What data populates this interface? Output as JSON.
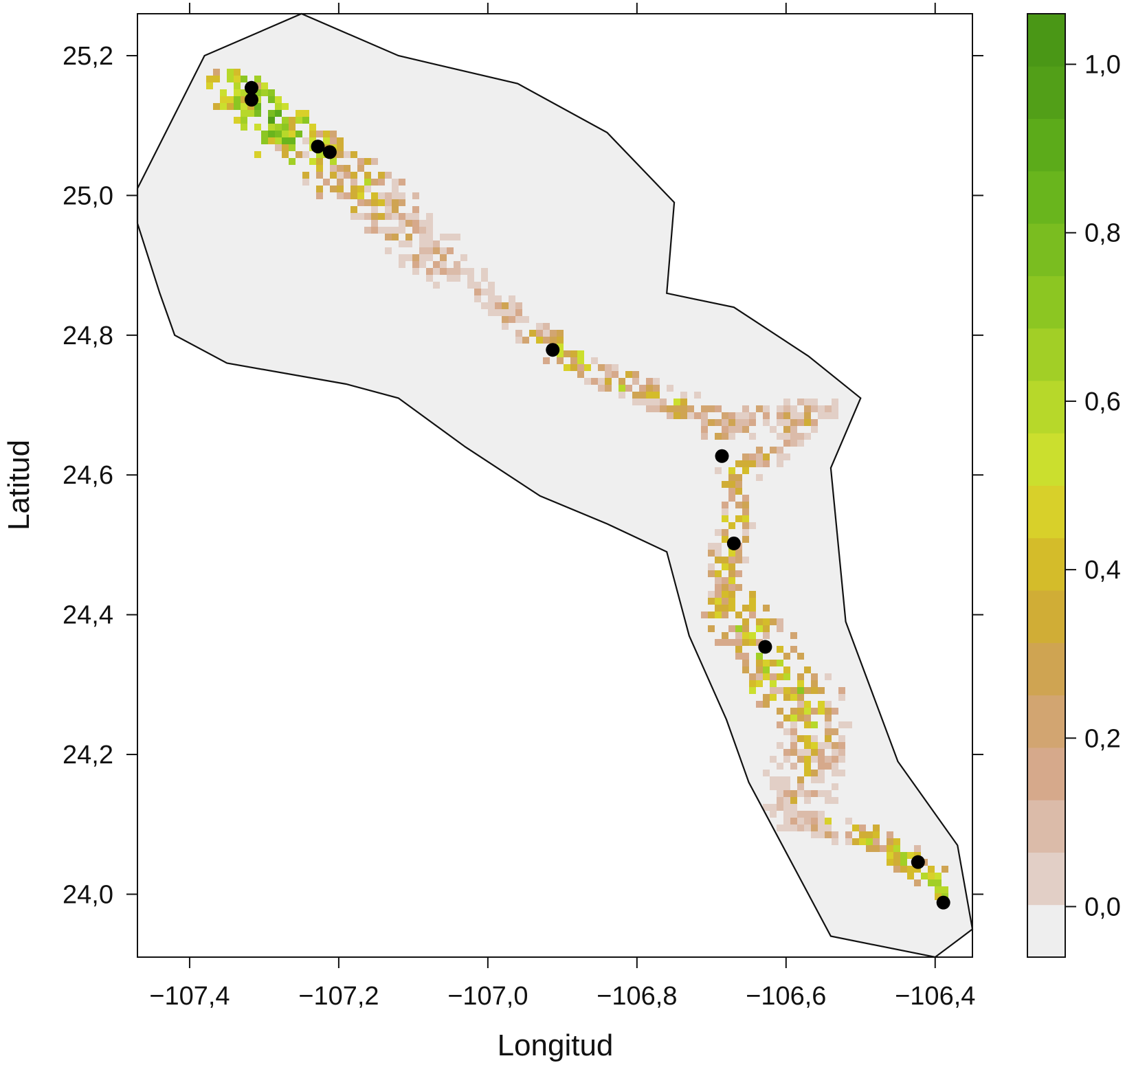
{
  "chart_data": {
    "type": "heatmap",
    "xlabel": "Longitud",
    "ylabel": "Latitud",
    "xlim": [
      -107.47,
      -106.35
    ],
    "ylim": [
      23.91,
      25.26
    ],
    "x_ticks": [
      -107.4,
      -107.2,
      -107.0,
      -106.8,
      -106.6,
      -106.4
    ],
    "x_tick_labels": [
      "−107,4",
      "−107,2",
      "−107,0",
      "−106,8",
      "−106,6",
      "−106,4"
    ],
    "y_ticks": [
      24.0,
      24.2,
      24.4,
      24.6,
      24.8,
      25.0,
      25.2
    ],
    "y_tick_labels": [
      "24,0",
      "24,2",
      "24,4",
      "24,6",
      "24,8",
      "25,0",
      "25,2"
    ],
    "colorbar": {
      "range": [
        -0.06,
        1.06
      ],
      "ticks": [
        0.0,
        0.2,
        0.4,
        0.6,
        0.8,
        1.0
      ],
      "tick_labels": [
        "0,0",
        "0,2",
        "0,4",
        "0,6",
        "0,8",
        "1,0"
      ],
      "colors": [
        "#eeeeee",
        "#e2cfc6",
        "#dbbba9",
        "#d6a98b",
        "#d2a571",
        "#cfa452",
        "#d0ad36",
        "#d4bc2a",
        "#d8d02a",
        "#cbdf2e",
        "#b7d82a",
        "#a2cf26",
        "#8cc622",
        "#7abd20",
        "#69b51d",
        "#5cab1a",
        "#529f18",
        "#4a9716"
      ]
    },
    "study_area_polygon": [
      [
        -107.38,
        25.2
      ],
      [
        -107.25,
        25.26
      ],
      [
        -107.12,
        25.2
      ],
      [
        -106.96,
        25.16
      ],
      [
        -106.84,
        25.09
      ],
      [
        -106.75,
        24.99
      ],
      [
        -106.76,
        24.86
      ],
      [
        -106.67,
        24.84
      ],
      [
        -106.57,
        24.77
      ],
      [
        -106.5,
        24.71
      ],
      [
        -106.54,
        24.61
      ],
      [
        -106.52,
        24.39
      ],
      [
        -106.45,
        24.19
      ],
      [
        -106.37,
        24.07
      ],
      [
        -106.35,
        23.95
      ],
      [
        -106.4,
        23.91
      ],
      [
        -106.54,
        23.94
      ],
      [
        -106.65,
        24.16
      ],
      [
        -106.68,
        24.25
      ],
      [
        -106.73,
        24.37
      ],
      [
        -106.76,
        24.49
      ],
      [
        -106.84,
        24.53
      ],
      [
        -106.93,
        24.57
      ],
      [
        -107.03,
        24.64
      ],
      [
        -107.12,
        24.71
      ],
      [
        -107.19,
        24.73
      ],
      [
        -107.35,
        24.76
      ],
      [
        -107.42,
        24.8
      ],
      [
        -107.44,
        24.86
      ],
      [
        -107.47,
        24.96
      ],
      [
        -107.47,
        25.01
      ]
    ],
    "suitability_corridor": [
      {
        "lon": -107.36,
        "lat": 25.16,
        "value": 0.68
      },
      {
        "lon": -107.33,
        "lat": 25.15,
        "value": 0.82
      },
      {
        "lon": -107.3,
        "lat": 25.12,
        "value": 0.97
      },
      {
        "lon": -107.27,
        "lat": 25.09,
        "value": 0.9
      },
      {
        "lon": -107.24,
        "lat": 25.07,
        "value": 0.62
      },
      {
        "lon": -107.2,
        "lat": 25.04,
        "value": 0.52
      },
      {
        "lon": -107.16,
        "lat": 25.01,
        "value": 0.55
      },
      {
        "lon": -107.12,
        "lat": 24.97,
        "value": 0.38
      },
      {
        "lon": -107.1,
        "lat": 24.93,
        "value": 0.32
      },
      {
        "lon": -107.05,
        "lat": 24.9,
        "value": 0.22
      },
      {
        "lon": -107.0,
        "lat": 24.86,
        "value": 0.18
      },
      {
        "lon": -106.98,
        "lat": 24.84,
        "value": 0.24
      },
      {
        "lon": -106.93,
        "lat": 24.8,
        "value": 0.45
      },
      {
        "lon": -106.9,
        "lat": 24.77,
        "value": 0.72
      },
      {
        "lon": -106.86,
        "lat": 24.75,
        "value": 0.35
      },
      {
        "lon": -106.82,
        "lat": 24.73,
        "value": 0.47
      },
      {
        "lon": -106.78,
        "lat": 24.72,
        "value": 0.4
      },
      {
        "lon": -106.73,
        "lat": 24.7,
        "value": 0.48
      },
      {
        "lon": -106.69,
        "lat": 24.67,
        "value": 0.42
      },
      {
        "lon": -106.62,
        "lat": 24.69,
        "value": 0.3
      },
      {
        "lon": -106.55,
        "lat": 24.7,
        "value": 0.28
      },
      {
        "lon": -106.68,
        "lat": 24.6,
        "value": 0.52
      },
      {
        "lon": -106.67,
        "lat": 24.53,
        "value": 0.62
      },
      {
        "lon": -106.69,
        "lat": 24.46,
        "value": 0.46
      },
      {
        "lon": -106.68,
        "lat": 24.4,
        "value": 0.7
      },
      {
        "lon": -106.64,
        "lat": 24.36,
        "value": 0.55
      },
      {
        "lon": -106.62,
        "lat": 24.32,
        "value": 0.74
      },
      {
        "lon": -106.58,
        "lat": 24.28,
        "value": 0.58
      },
      {
        "lon": -106.56,
        "lat": 24.22,
        "value": 0.44
      },
      {
        "lon": -106.6,
        "lat": 24.12,
        "value": 0.2
      },
      {
        "lon": -106.48,
        "lat": 24.08,
        "value": 0.64
      },
      {
        "lon": -106.42,
        "lat": 24.04,
        "value": 0.68
      },
      {
        "lon": -106.39,
        "lat": 24.01,
        "value": 0.78
      }
    ],
    "occurrence_points": [
      {
        "lon": -107.317,
        "lat": 25.154
      },
      {
        "lon": -107.317,
        "lat": 25.137
      },
      {
        "lon": -107.228,
        "lat": 25.07
      },
      {
        "lon": -107.212,
        "lat": 25.062
      },
      {
        "lon": -106.913,
        "lat": 24.779
      },
      {
        "lon": -106.686,
        "lat": 24.627
      },
      {
        "lon": -106.67,
        "lat": 24.502
      },
      {
        "lon": -106.628,
        "lat": 24.354
      },
      {
        "lon": -106.423,
        "lat": 24.046
      },
      {
        "lon": -106.389,
        "lat": 23.988
      }
    ]
  }
}
